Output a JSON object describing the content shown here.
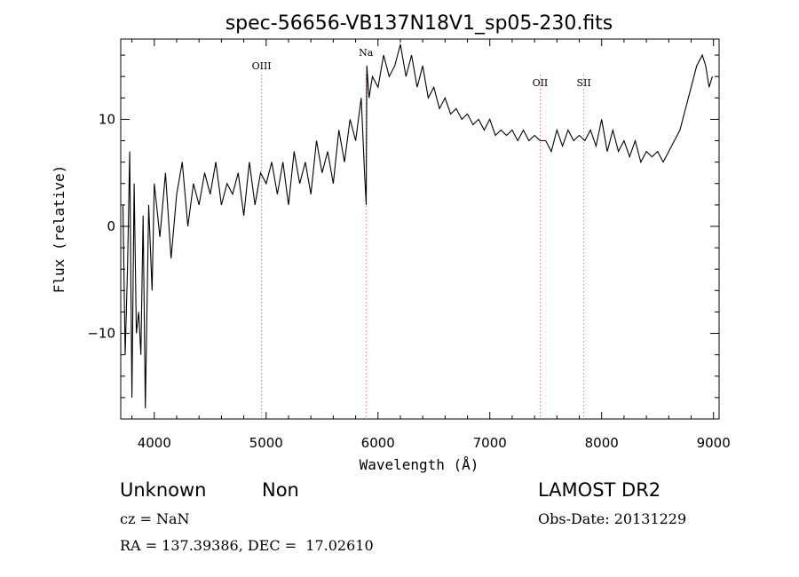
{
  "chart_data": {
    "type": "line",
    "title": "spec-56656-VB137N18V1_sp05-230.fits",
    "xlabel": "Wavelength (Å)",
    "ylabel": "Flux (relative)",
    "xlim": [
      3700,
      9050
    ],
    "ylim": [
      -18,
      17.5
    ],
    "x_ticks": [
      4000,
      5000,
      6000,
      7000,
      8000,
      9000
    ],
    "y_ticks": [
      -10,
      0,
      10
    ],
    "x_tick_labels": [
      "4000",
      "5000",
      "6000",
      "7000",
      "8000",
      "9000"
    ],
    "y_tick_labels": [
      "−10",
      "0",
      "10"
    ],
    "grid": false,
    "legend": "none",
    "line_color": "#000000",
    "marker_color": "#d08080",
    "lines": [
      {
        "label": "OIII",
        "x": 4959
      },
      {
        "label": "Na",
        "x": 5893
      },
      {
        "label": "OII",
        "x": 7450
      },
      {
        "label": "SII",
        "x": 7840
      }
    ],
    "series": [
      {
        "x": [
          3720,
          3740,
          3760,
          3780,
          3800,
          3820,
          3840,
          3860,
          3880,
          3900,
          3920,
          3950,
          3980,
          4000,
          4050,
          4100,
          4150,
          4200,
          4250,
          4300,
          4350,
          4400,
          4450,
          4500,
          4550,
          4600,
          4650,
          4700,
          4750,
          4800,
          4850,
          4900,
          4950,
          5000,
          5050,
          5100,
          5150,
          5200,
          5250,
          5300,
          5350,
          5400,
          5450,
          5500,
          5550,
          5600,
          5650,
          5700,
          5750,
          5800,
          5850,
          5880,
          5895,
          5900,
          5920,
          5950,
          6000,
          6050,
          6100,
          6150,
          6200,
          6250,
          6300,
          6350,
          6400,
          6450,
          6500,
          6550,
          6600,
          6650,
          6700,
          6750,
          6800,
          6850,
          6900,
          6950,
          7000,
          7050,
          7100,
          7150,
          7200,
          7250,
          7300,
          7350,
          7400,
          7450,
          7500,
          7550,
          7600,
          7650,
          7700,
          7750,
          7800,
          7850,
          7900,
          7950,
          8000,
          8050,
          8100,
          8150,
          8200,
          8250,
          8300,
          8350,
          8400,
          8450,
          8500,
          8550,
          8600,
          8650,
          8700,
          8750,
          8800,
          8850,
          8900,
          8930,
          8960,
          8990
        ],
        "values": [
          2,
          -12,
          -4,
          7,
          -16,
          4,
          -10,
          -8,
          -12,
          1,
          -17,
          2,
          -6,
          4,
          -1,
          5,
          -3,
          3,
          6,
          0,
          4,
          2,
          5,
          3,
          6,
          2,
          4,
          3,
          5,
          1,
          6,
          2,
          5,
          4,
          6,
          3,
          6,
          2,
          7,
          4,
          6,
          3,
          8,
          5,
          7,
          4,
          9,
          6,
          10,
          8,
          12,
          5,
          2,
          15,
          12,
          14,
          13,
          16,
          14,
          15,
          17,
          14,
          16,
          13,
          15,
          12,
          13,
          11,
          12,
          10.5,
          11,
          10,
          10.5,
          9.5,
          10,
          9,
          10,
          8.5,
          9,
          8.5,
          9,
          8,
          9,
          8,
          8.5,
          8,
          8,
          7,
          9,
          7.5,
          9,
          8,
          8.5,
          8,
          9,
          7.5,
          10,
          7,
          9,
          7,
          8,
          6.5,
          8,
          6,
          7,
          6.5,
          7,
          6,
          7,
          8,
          9,
          11,
          13,
          15,
          16,
          15,
          13,
          14
        ]
      }
    ]
  },
  "footer": {
    "object_class": "Unknown",
    "object_subclass": "Non",
    "survey": "LAMOST DR2",
    "cz": "cz = NaN",
    "obs_date": "Obs-Date: 20131229",
    "coords": "RA = 137.39386, DEC =  17.02610"
  }
}
